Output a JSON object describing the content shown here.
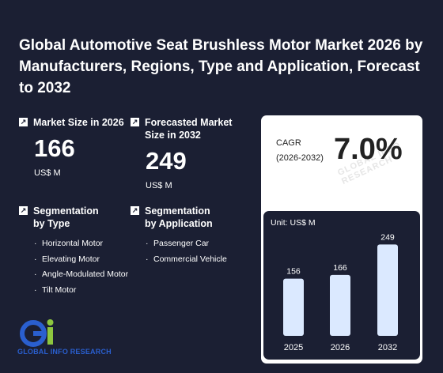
{
  "title": "Global Automotive Seat Brushless Motor Market 2026 by Manufacturers, Regions, Type and Application, Forecast to 2032",
  "market_size": {
    "label": "Market Size in 2026",
    "value": "166",
    "unit": "US$ M"
  },
  "forecast_size": {
    "label": "Forecasted Market Size in 2032",
    "value": "249",
    "unit": "US$ M"
  },
  "segmentation_type": {
    "label": "Segmentation by Type",
    "items": [
      "Horizontal Motor",
      "Elevating Motor",
      "Angle-Modulated Motor",
      "Tilt Motor"
    ]
  },
  "segmentation_application": {
    "label": "Segmentation by Application",
    "items": [
      "Passenger Car",
      "Commercial Vehicle"
    ]
  },
  "cagr": {
    "label": "CAGR",
    "period": "(2026-2032)",
    "value": "7.0%"
  },
  "watermark": "GLOBAL INFO RESEARCH",
  "logo": {
    "text": "GLOBAL INFO RESEARCH"
  },
  "colors": {
    "background": "#1b1f33",
    "bar": "#dbe9ff",
    "card": "#ffffff",
    "logo_blue": "#2a5fcf",
    "logo_green": "#8dc63f"
  },
  "icons": {
    "stat_arrow": "arrow-up-right-icon"
  },
  "chart_data": {
    "type": "bar",
    "unit_label": "Unit: US$ M",
    "categories": [
      "2025",
      "2026",
      "2032"
    ],
    "values": [
      156,
      166,
      249
    ],
    "ylim": [
      0,
      280
    ]
  }
}
